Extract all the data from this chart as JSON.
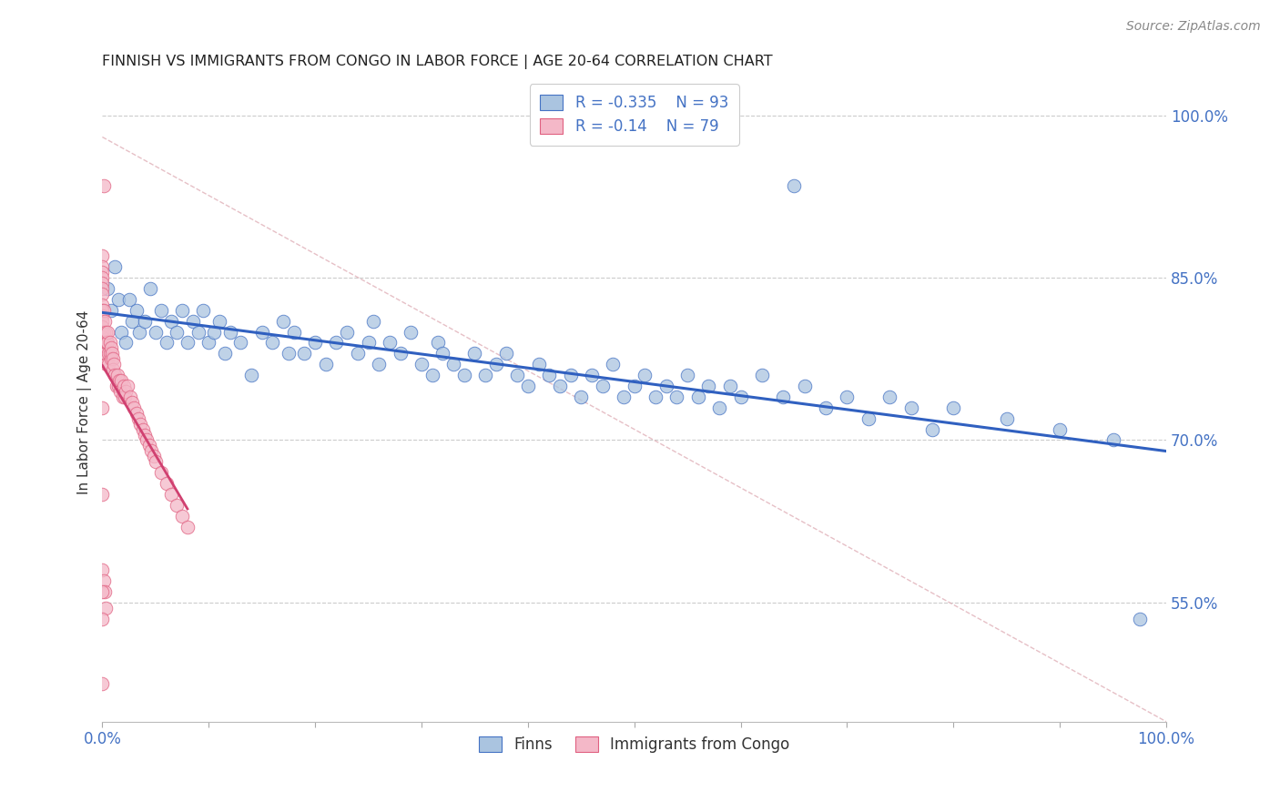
{
  "title": "FINNISH VS IMMIGRANTS FROM CONGO IN LABOR FORCE | AGE 20-64 CORRELATION CHART",
  "source": "Source: ZipAtlas.com",
  "ylabel": "In Labor Force | Age 20-64",
  "ytick_labels": [
    "55.0%",
    "70.0%",
    "85.0%",
    "100.0%"
  ],
  "ytick_values": [
    0.55,
    0.7,
    0.85,
    1.0
  ],
  "xmin": 0.0,
  "xmax": 1.0,
  "ymin": 0.44,
  "ymax": 1.03,
  "legend_label1": "Finns",
  "legend_label2": "Immigrants from Congo",
  "r1": -0.335,
  "n1": 93,
  "r2": -0.14,
  "n2": 79,
  "color_finns_fill": "#aac4e0",
  "color_finns_edge": "#4472C4",
  "color_congo_fill": "#f4b8c8",
  "color_congo_edge": "#e06080",
  "color_trend_finns": "#3060C0",
  "color_trend_congo": "#d04070",
  "color_diag": "#e0b0b8",
  "background": "#ffffff",
  "title_color": "#222222",
  "axis_color": "#4472C4",
  "finns_x": [
    0.005,
    0.008,
    0.012,
    0.015,
    0.018,
    0.022,
    0.025,
    0.028,
    0.032,
    0.035,
    0.04,
    0.045,
    0.05,
    0.055,
    0.06,
    0.065,
    0.07,
    0.075,
    0.08,
    0.085,
    0.09,
    0.095,
    0.1,
    0.105,
    0.11,
    0.115,
    0.12,
    0.13,
    0.14,
    0.15,
    0.16,
    0.17,
    0.175,
    0.18,
    0.19,
    0.2,
    0.21,
    0.22,
    0.23,
    0.24,
    0.25,
    0.255,
    0.26,
    0.27,
    0.28,
    0.29,
    0.3,
    0.31,
    0.315,
    0.32,
    0.33,
    0.34,
    0.35,
    0.36,
    0.37,
    0.38,
    0.39,
    0.4,
    0.41,
    0.42,
    0.43,
    0.44,
    0.45,
    0.46,
    0.47,
    0.48,
    0.49,
    0.5,
    0.51,
    0.52,
    0.53,
    0.54,
    0.55,
    0.56,
    0.57,
    0.58,
    0.59,
    0.6,
    0.62,
    0.64,
    0.65,
    0.66,
    0.68,
    0.7,
    0.72,
    0.74,
    0.76,
    0.78,
    0.8,
    0.85,
    0.9,
    0.95,
    0.975
  ],
  "finns_y": [
    0.84,
    0.82,
    0.86,
    0.83,
    0.8,
    0.79,
    0.83,
    0.81,
    0.82,
    0.8,
    0.81,
    0.84,
    0.8,
    0.82,
    0.79,
    0.81,
    0.8,
    0.82,
    0.79,
    0.81,
    0.8,
    0.82,
    0.79,
    0.8,
    0.81,
    0.78,
    0.8,
    0.79,
    0.76,
    0.8,
    0.79,
    0.81,
    0.78,
    0.8,
    0.78,
    0.79,
    0.77,
    0.79,
    0.8,
    0.78,
    0.79,
    0.81,
    0.77,
    0.79,
    0.78,
    0.8,
    0.77,
    0.76,
    0.79,
    0.78,
    0.77,
    0.76,
    0.78,
    0.76,
    0.77,
    0.78,
    0.76,
    0.75,
    0.77,
    0.76,
    0.75,
    0.76,
    0.74,
    0.76,
    0.75,
    0.77,
    0.74,
    0.75,
    0.76,
    0.74,
    0.75,
    0.74,
    0.76,
    0.74,
    0.75,
    0.73,
    0.75,
    0.74,
    0.76,
    0.74,
    0.935,
    0.75,
    0.73,
    0.74,
    0.72,
    0.74,
    0.73,
    0.71,
    0.73,
    0.72,
    0.71,
    0.7,
    0.535
  ],
  "congo_x": [
    0.0,
    0.0,
    0.0,
    0.0,
    0.0,
    0.0,
    0.0,
    0.0,
    0.0,
    0.0,
    0.0,
    0.0,
    0.0,
    0.0,
    0.0,
    0.0,
    0.0,
    0.0,
    0.001,
    0.001,
    0.002,
    0.002,
    0.003,
    0.003,
    0.004,
    0.004,
    0.005,
    0.005,
    0.006,
    0.006,
    0.007,
    0.007,
    0.008,
    0.008,
    0.009,
    0.01,
    0.01,
    0.011,
    0.012,
    0.013,
    0.014,
    0.015,
    0.016,
    0.017,
    0.018,
    0.019,
    0.02,
    0.021,
    0.022,
    0.024,
    0.026,
    0.028,
    0.03,
    0.032,
    0.034,
    0.036,
    0.038,
    0.04,
    0.042,
    0.044,
    0.046,
    0.048,
    0.05,
    0.055,
    0.06,
    0.065,
    0.07,
    0.075,
    0.08,
    0.0,
    0.0,
    0.0,
    0.001,
    0.001,
    0.002,
    0.003,
    0.0,
    0.0,
    0.0
  ],
  "congo_y": [
    0.87,
    0.86,
    0.855,
    0.85,
    0.845,
    0.84,
    0.835,
    0.825,
    0.82,
    0.815,
    0.81,
    0.805,
    0.8,
    0.795,
    0.79,
    0.785,
    0.78,
    0.775,
    0.82,
    0.8,
    0.81,
    0.79,
    0.8,
    0.78,
    0.79,
    0.77,
    0.79,
    0.8,
    0.78,
    0.77,
    0.79,
    0.78,
    0.785,
    0.775,
    0.78,
    0.775,
    0.765,
    0.77,
    0.76,
    0.75,
    0.76,
    0.75,
    0.755,
    0.745,
    0.755,
    0.74,
    0.75,
    0.74,
    0.745,
    0.75,
    0.74,
    0.735,
    0.73,
    0.725,
    0.72,
    0.715,
    0.71,
    0.705,
    0.7,
    0.695,
    0.69,
    0.685,
    0.68,
    0.67,
    0.66,
    0.65,
    0.64,
    0.63,
    0.62,
    0.73,
    0.65,
    0.58,
    0.935,
    0.57,
    0.56,
    0.545,
    0.56,
    0.535,
    0.475
  ]
}
